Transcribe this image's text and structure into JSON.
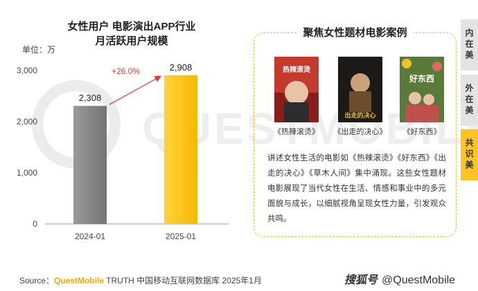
{
  "chart_data": {
    "type": "bar",
    "title": [
      "女性用户 电影演出APP行业",
      "月活跃用户规模"
    ],
    "unit": "单位：万",
    "categories": [
      "2024-01",
      "2025-01"
    ],
    "values": [
      2308,
      2908
    ],
    "value_labels": [
      "2,308",
      "2,908"
    ],
    "growth_label": "+26.0%",
    "ylim": [
      0,
      3000
    ],
    "yticks": [
      0,
      1000,
      2000,
      3000
    ],
    "ytick_labels": [
      "0",
      "1,000",
      "2,000",
      "3,000"
    ],
    "bar_colors": [
      "#8a8a8a",
      "#fdc424"
    ],
    "grid": false
  },
  "case_panel": {
    "title": "聚焦女性题材电影案例",
    "posters": [
      {
        "caption": "《热辣滚烫》",
        "poster_text": "热辣滚烫"
      },
      {
        "caption": "《出走的决心》",
        "poster_text": "出走的决心"
      },
      {
        "caption": "《好东西》",
        "poster_text": "好东西"
      }
    ],
    "description": "讲述女性生活的电影如《热辣滚烫》《好东西》《出走的决心》《草木人间》集中涌现。这些女性题材电影展现了当代女性在生活、情感和事业中的多元面貌与成长，以细腻视角呈现女性力量，引发观众共鸣。"
  },
  "side_tabs": {
    "inner": "内在美",
    "outer": "外在美",
    "shared": "共识美"
  },
  "footer": {
    "source_prefix": "Source：",
    "source_brand": "QuestMobile",
    "source_text": " TRUTH 中国移动互联网数据库 2025年1月",
    "brand_logo": "搜狐号",
    "brand_handle": "@QuestMobile"
  },
  "watermark": "QUESTMOBILE",
  "colors": {
    "accent": "#fdc424",
    "gray_bar": "#8a8a8a",
    "arrow": "#e0373a",
    "panel_border": "#f2b53a"
  }
}
